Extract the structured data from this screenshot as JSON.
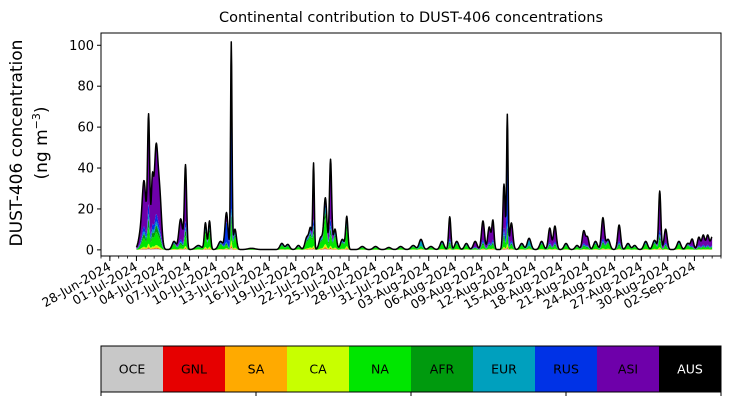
{
  "chart_data": {
    "type": "area",
    "title": "Continental contribution to DUST-406 concentrations",
    "ylabel_line1": "DUST-406 concentration",
    "ylabel_line2_prefix": "(ng m",
    "ylabel_line2_exp": "−3",
    "ylabel_line2_suffix": ")",
    "ylim": [
      -3,
      106
    ],
    "yticks": [
      0,
      20,
      40,
      60,
      80,
      100
    ],
    "ytick_labels": [
      "0",
      "20",
      "40",
      "60",
      "80",
      "100"
    ],
    "xlim": [
      "2024-06-27",
      "2024-09-05"
    ],
    "xticks": [
      "2024-06-28",
      "2024-07-01",
      "2024-07-04",
      "2024-07-07",
      "2024-07-10",
      "2024-07-13",
      "2024-07-16",
      "2024-07-19",
      "2024-07-22",
      "2024-07-25",
      "2024-07-28",
      "2024-07-31",
      "2024-08-03",
      "2024-08-06",
      "2024-08-09",
      "2024-08-12",
      "2024-08-15",
      "2024-08-18",
      "2024-08-21",
      "2024-08-24",
      "2024-08-27",
      "2024-08-30",
      "2024-09-02"
    ],
    "xtick_labels": [
      "28-Jun-2024",
      "01-Jul-2024",
      "04-Jul-2024",
      "07-Jul-2024",
      "10-Jul-2024",
      "13-Jul-2024",
      "16-Jul-2024",
      "19-Jul-2024",
      "22-Jul-2024",
      "25-Jul-2024",
      "28-Jul-2024",
      "31-Jul-2024",
      "03-Aug-2024",
      "06-Aug-2024",
      "09-Aug-2024",
      "12-Aug-2024",
      "15-Aug-2024",
      "18-Aug-2024",
      "21-Aug-2024",
      "24-Aug-2024",
      "27-Aug-2024",
      "30-Aug-2024",
      "02-Sep-2024"
    ],
    "start": "2024-07-01",
    "end": "2024-09-04",
    "peaks": [
      {
        "date": "2024-07-01T12:00",
        "value": 8,
        "width_h": 6,
        "mix": "ASI"
      },
      {
        "date": "2024-07-01T21:00",
        "value": 31,
        "width_h": 5,
        "mix": "ASI"
      },
      {
        "date": "2024-07-02T09:00",
        "value": 64.5,
        "width_h": 3,
        "mix": "ASI"
      },
      {
        "date": "2024-07-02T19:00",
        "value": 30,
        "width_h": 3,
        "mix": "ASI"
      },
      {
        "date": "2024-07-03T05:00",
        "value": 48,
        "width_h": 5,
        "mix": "ASI"
      },
      {
        "date": "2024-07-03T15:00",
        "value": 25,
        "width_h": 5,
        "mix": "ASI"
      },
      {
        "date": "2024-07-05T06:00",
        "value": 4,
        "width_h": 5,
        "mix": "NA"
      },
      {
        "date": "2024-07-06T00:00",
        "value": 15,
        "width_h": 5,
        "mix": "ASI"
      },
      {
        "date": "2024-07-06T13:00",
        "value": 41,
        "width_h": 3,
        "mix": "ASI"
      },
      {
        "date": "2024-07-08T00:00",
        "value": 2,
        "width_h": 8,
        "mix": "NA"
      },
      {
        "date": "2024-07-08T19:00",
        "value": 13,
        "width_h": 3,
        "mix": "NA"
      },
      {
        "date": "2024-07-09T06:00",
        "value": 14,
        "width_h": 3,
        "mix": "NA"
      },
      {
        "date": "2024-07-10T12:00",
        "value": 4,
        "width_h": 6,
        "mix": "NA"
      },
      {
        "date": "2024-07-11T04:00",
        "value": 18,
        "width_h": 4,
        "mix": "RUS"
      },
      {
        "date": "2024-07-11T17:00",
        "value": 101,
        "width_h": 2,
        "mix": "RUS"
      },
      {
        "date": "2024-07-12T03:00",
        "value": 10,
        "width_h": 4,
        "mix": "NA"
      },
      {
        "date": "2024-07-14T00:00",
        "value": 0.6,
        "width_h": 10,
        "mix": "NA"
      },
      {
        "date": "2024-07-17T10:00",
        "value": 3,
        "width_h": 5,
        "mix": "NA"
      },
      {
        "date": "2024-07-18T02:00",
        "value": 2.5,
        "width_h": 5,
        "mix": "NA"
      },
      {
        "date": "2024-07-19T07:00",
        "value": 2,
        "width_h": 5,
        "mix": "NA"
      },
      {
        "date": "2024-07-20T06:00",
        "value": 6,
        "width_h": 5,
        "mix": "NA"
      },
      {
        "date": "2024-07-20T16:00",
        "value": 10,
        "width_h": 4,
        "mix": "NA"
      },
      {
        "date": "2024-07-21T00:00",
        "value": 41,
        "width_h": 2,
        "mix": "ASI"
      },
      {
        "date": "2024-07-21T20:00",
        "value": 6,
        "width_h": 5,
        "mix": "NA"
      },
      {
        "date": "2024-07-22T08:00",
        "value": 25,
        "width_h": 4,
        "mix": "NA"
      },
      {
        "date": "2024-07-22T22:00",
        "value": 44,
        "width_h": 3,
        "mix": "ASI"
      },
      {
        "date": "2024-07-23T10:00",
        "value": 10,
        "width_h": 4,
        "mix": "NA"
      },
      {
        "date": "2024-07-24T06:00",
        "value": 5,
        "width_h": 5,
        "mix": "NA"
      },
      {
        "date": "2024-07-24T18:00",
        "value": 16,
        "width_h": 3,
        "mix": "NA"
      },
      {
        "date": "2024-07-26T12:00",
        "value": 1.5,
        "width_h": 6,
        "mix": "NA"
      },
      {
        "date": "2024-07-28T00:00",
        "value": 1.5,
        "width_h": 6,
        "mix": "NA"
      },
      {
        "date": "2024-07-29T12:00",
        "value": 1,
        "width_h": 6,
        "mix": "NA"
      },
      {
        "date": "2024-07-30T20:00",
        "value": 1.5,
        "width_h": 6,
        "mix": "NA"
      },
      {
        "date": "2024-08-01T06:00",
        "value": 2,
        "width_h": 6,
        "mix": "NA"
      },
      {
        "date": "2024-08-02T03:00",
        "value": 5,
        "width_h": 5,
        "mix": "EUR"
      },
      {
        "date": "2024-08-03T06:00",
        "value": 1.5,
        "width_h": 6,
        "mix": "NA"
      },
      {
        "date": "2024-08-04T12:00",
        "value": 4,
        "width_h": 5,
        "mix": "NA"
      },
      {
        "date": "2024-08-05T09:00",
        "value": 16,
        "width_h": 3,
        "mix": "ASI"
      },
      {
        "date": "2024-08-06T04:00",
        "value": 4,
        "width_h": 5,
        "mix": "NA"
      },
      {
        "date": "2024-08-07T06:00",
        "value": 3,
        "width_h": 5,
        "mix": "NA"
      },
      {
        "date": "2024-08-08T06:00",
        "value": 4,
        "width_h": 5,
        "mix": "ASI"
      },
      {
        "date": "2024-08-09T03:00",
        "value": 14,
        "width_h": 4,
        "mix": "ASI"
      },
      {
        "date": "2024-08-09T20:00",
        "value": 11,
        "width_h": 4,
        "mix": "ASI"
      },
      {
        "date": "2024-08-10T06:00",
        "value": 14,
        "width_h": 3,
        "mix": "ASI"
      },
      {
        "date": "2024-08-11T12:00",
        "value": 32,
        "width_h": 3,
        "mix": "ASI"
      },
      {
        "date": "2024-08-11T21:00",
        "value": 65.5,
        "width_h": 2,
        "mix": "RUS"
      },
      {
        "date": "2024-08-12T08:00",
        "value": 13,
        "width_h": 4,
        "mix": "ASI"
      },
      {
        "date": "2024-08-13T12:00",
        "value": 3,
        "width_h": 5,
        "mix": "NA"
      },
      {
        "date": "2024-08-14T08:00",
        "value": 5.5,
        "width_h": 5,
        "mix": "EUR"
      },
      {
        "date": "2024-08-15T18:00",
        "value": 4,
        "width_h": 5,
        "mix": "NA"
      },
      {
        "date": "2024-08-16T16:00",
        "value": 10.5,
        "width_h": 4,
        "mix": "ASI"
      },
      {
        "date": "2024-08-17T06:00",
        "value": 11.5,
        "width_h": 4,
        "mix": "ASI"
      },
      {
        "date": "2024-08-18T12:00",
        "value": 3,
        "width_h": 5,
        "mix": "NA"
      },
      {
        "date": "2024-08-19T18:00",
        "value": 2,
        "width_h": 5,
        "mix": "NA"
      },
      {
        "date": "2024-08-20T12:00",
        "value": 9,
        "width_h": 4,
        "mix": "ASI"
      },
      {
        "date": "2024-08-20T22:00",
        "value": 6,
        "width_h": 4,
        "mix": "ASI"
      },
      {
        "date": "2024-08-21T20:00",
        "value": 4,
        "width_h": 5,
        "mix": "NA"
      },
      {
        "date": "2024-08-22T16:00",
        "value": 15.5,
        "width_h": 4,
        "mix": "ASI"
      },
      {
        "date": "2024-08-23T06:00",
        "value": 5,
        "width_h": 5,
        "mix": "NA"
      },
      {
        "date": "2024-08-24T12:00",
        "value": 12,
        "width_h": 4,
        "mix": "ASI"
      },
      {
        "date": "2024-08-25T12:00",
        "value": 3,
        "width_h": 5,
        "mix": "NA"
      },
      {
        "date": "2024-08-26T06:00",
        "value": 2,
        "width_h": 5,
        "mix": "NA"
      },
      {
        "date": "2024-08-27T12:00",
        "value": 4,
        "width_h": 5,
        "mix": "NA"
      },
      {
        "date": "2024-08-28T12:00",
        "value": 4.5,
        "width_h": 5,
        "mix": "NA"
      },
      {
        "date": "2024-08-29T02:00",
        "value": 28.5,
        "width_h": 3,
        "mix": "ASI"
      },
      {
        "date": "2024-08-29T18:00",
        "value": 10,
        "width_h": 4,
        "mix": "ASI"
      },
      {
        "date": "2024-08-31T06:00",
        "value": 4,
        "width_h": 5,
        "mix": "NA"
      },
      {
        "date": "2024-09-01T06:00",
        "value": 3,
        "width_h": 5,
        "mix": "NA"
      },
      {
        "date": "2024-09-01T18:00",
        "value": 5,
        "width_h": 4,
        "mix": "ASI"
      },
      {
        "date": "2024-09-02T12:00",
        "value": 6,
        "width_h": 4,
        "mix": "ASI"
      },
      {
        "date": "2024-09-03T00:00",
        "value": 7,
        "width_h": 4,
        "mix": "ASI"
      },
      {
        "date": "2024-09-03T12:00",
        "value": 7,
        "width_h": 4,
        "mix": "ASI"
      },
      {
        "date": "2024-09-04T00:00",
        "value": 6,
        "width_h": 4,
        "mix": "ASI"
      }
    ],
    "mixes": {
      "ASI": [
        0.01,
        0.005,
        0.01,
        0.02,
        0.12,
        0.06,
        0.04,
        0.07,
        0.64,
        0.025
      ],
      "RUS": [
        0.01,
        0.005,
        0.01,
        0.02,
        0.08,
        0.04,
        0.03,
        0.55,
        0.22,
        0.035
      ],
      "NA": [
        0.02,
        0.01,
        0.03,
        0.05,
        0.5,
        0.1,
        0.1,
        0.05,
        0.12,
        0.02
      ],
      "EUR": [
        0.02,
        0.01,
        0.02,
        0.05,
        0.2,
        0.05,
        0.45,
        0.05,
        0.12,
        0.03
      ]
    },
    "series": [
      {
        "name": "OCE",
        "color": "#c8c8c8",
        "label_color": "#000000"
      },
      {
        "name": "GNL",
        "color": "#e60000",
        "label_color": "#000000"
      },
      {
        "name": "SA",
        "color": "#ffaa00",
        "label_color": "#000000"
      },
      {
        "name": "CA",
        "color": "#c8ff00",
        "label_color": "#000000"
      },
      {
        "name": "NA",
        "color": "#00e600",
        "label_color": "#000000"
      },
      {
        "name": "AFR",
        "color": "#009a0e",
        "label_color": "#000000"
      },
      {
        "name": "EUR",
        "color": "#00a0be",
        "label_color": "#000000"
      },
      {
        "name": "RUS",
        "color": "#0032e6",
        "label_color": "#000000"
      },
      {
        "name": "ASI",
        "color": "#6e00aa",
        "label_color": "#000000"
      },
      {
        "name": "AUS",
        "color": "#000000",
        "label_color": "#ffffff"
      }
    ],
    "legend_placement": "bottom colorbar",
    "grid": false
  }
}
